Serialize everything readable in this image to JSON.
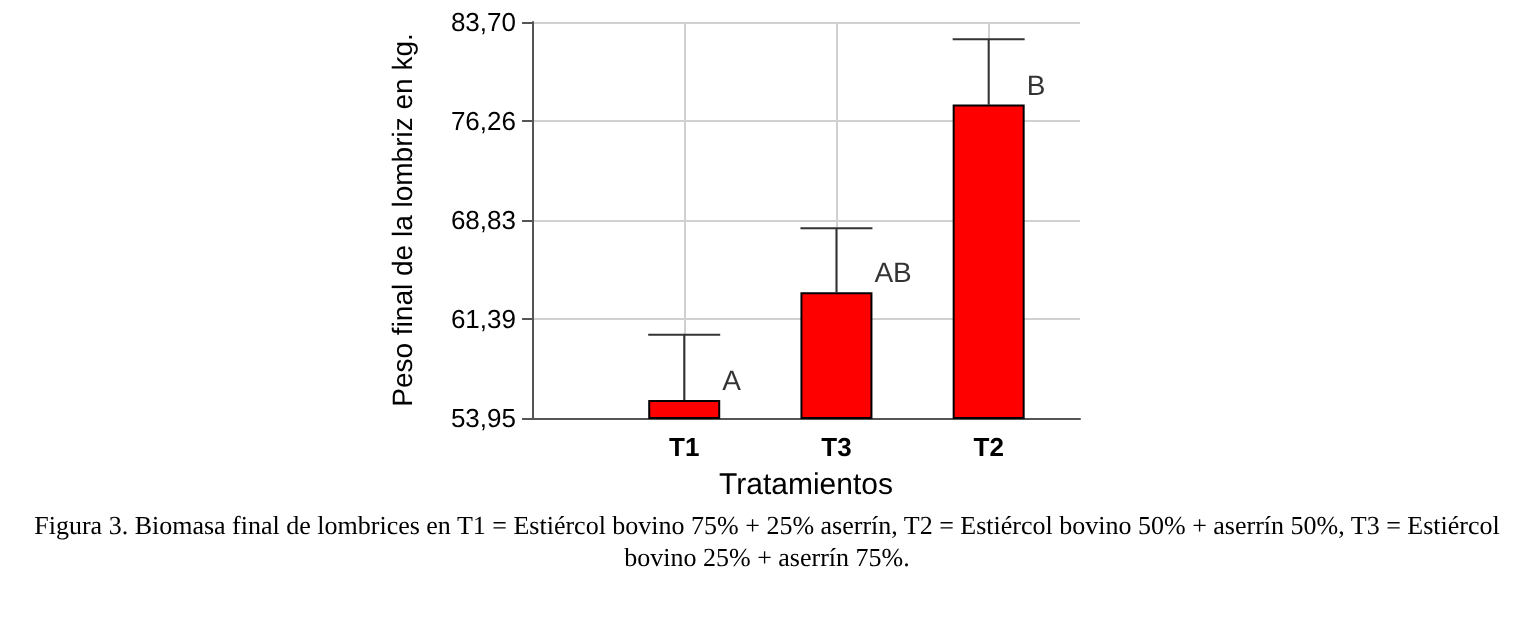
{
  "chart_data": {
    "type": "bar",
    "xlabel": "Tratamientos",
    "ylabel": "Peso final de la lombriz en kg.",
    "categories": [
      "T1",
      "T3",
      "T2"
    ],
    "values": [
      55.3,
      63.4,
      77.5
    ],
    "color": "#ff0000",
    "errors": [
      [
        55.3,
        60.2
      ],
      [
        63.4,
        68.2
      ],
      [
        77.5,
        82.4
      ]
    ],
    "ylim": [
      53.95,
      83.7
    ],
    "yticks": [
      {
        "value": 53.95,
        "label": "53,95"
      },
      {
        "value": 61.39,
        "label": "61,39"
      },
      {
        "value": 68.83,
        "label": "68,83"
      },
      {
        "value": 76.26,
        "label": "76,26"
      },
      {
        "value": 83.7,
        "label": "83,70"
      }
    ],
    "grid": true,
    "annotations": [
      {
        "text": "A",
        "x": "T1",
        "y": 55.3
      },
      {
        "text": "AB",
        "x": "T3",
        "y": 63.4
      },
      {
        "text": "B",
        "x": "T2",
        "y": 77.5
      },
      "Figura 3. Biomasa final de lombrices en T1 = Estiércol bovino 75% + 25% aserrín, T2 = Estiércol bovino 50% + aserrín 50%, T3 = Estiércol bovino 25% + aserrín 75%."
    ]
  }
}
